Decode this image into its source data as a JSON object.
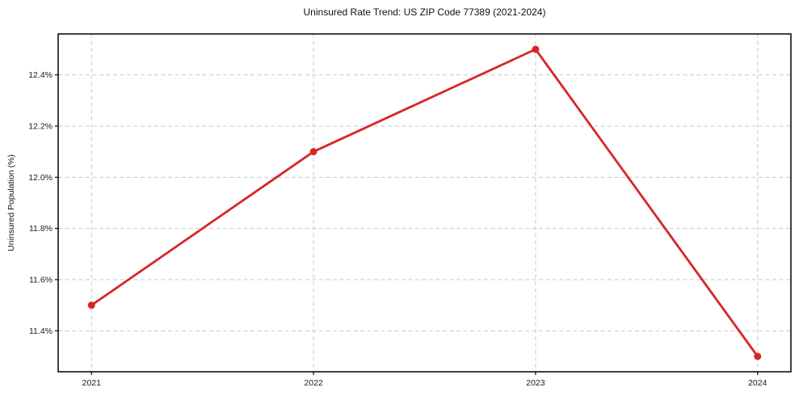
{
  "chart_data": {
    "type": "line",
    "title": "Uninsured Rate Trend: US ZIP Code 77389 (2021-2024)",
    "xlabel": "",
    "ylabel": "Uninsured Population (%)",
    "x": [
      2021,
      2022,
      2023,
      2024
    ],
    "xtick_labels": [
      "2021",
      "2022",
      "2023",
      "2024"
    ],
    "values": [
      11.5,
      12.1,
      12.5,
      11.3
    ],
    "yticks": [
      11.4,
      11.6,
      11.8,
      12.0,
      12.2,
      12.4
    ],
    "ytick_labels": [
      "11.4%",
      "11.6%",
      "11.8%",
      "12.0%",
      "12.2%",
      "12.4%"
    ],
    "xlim": [
      2020.85,
      2024.15
    ],
    "ylim": [
      11.24,
      12.56
    ],
    "grid": true,
    "legend_position": "none",
    "line_color": "#d62728",
    "marker": "circle",
    "marker_radius": 4.5,
    "grid_color": "#c9c9c9",
    "axis_color": "#000000"
  }
}
